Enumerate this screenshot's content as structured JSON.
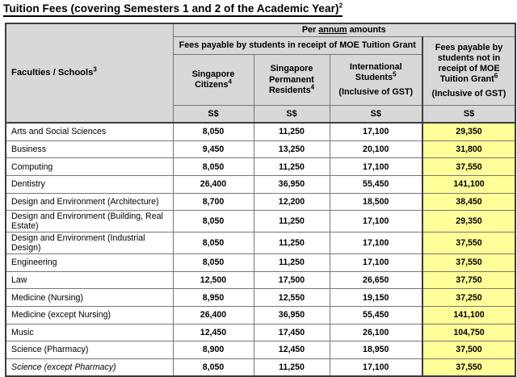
{
  "title": {
    "text": "Tuition Fees (covering Semesters 1 and 2 of the Academic Year)",
    "sup": "2"
  },
  "colors": {
    "header_bg": "#d8d8d8",
    "highlight_bg": "#ffff99",
    "border": "#3c3c3c"
  },
  "table": {
    "faculties": {
      "label": "Faculties / Schools",
      "sup": "3"
    },
    "per_annum": {
      "prefix": "Per ",
      "underlined": "annum",
      "suffix": " amounts"
    },
    "grant_header": "Fees payable by students in receipt of MOE Tuition Grant",
    "columns": [
      {
        "label": "Singapore Citizens",
        "sup": "4"
      },
      {
        "label": "Singapore Permanent Residents",
        "sup": "4"
      },
      {
        "label": "International Students",
        "sup": "5",
        "gst": "(Inclusive of GST)"
      }
    ],
    "non_grant": {
      "label": "Fees payable by students not in receipt of MOE Tuition Grant",
      "sup": "6",
      "gst": "(Inclusive of GST)"
    },
    "currency": "S$",
    "rows": [
      {
        "faculty": "Arts and Social Sciences",
        "citizens": "8,050",
        "pr": "11,250",
        "intl": "17,100",
        "non_grant": "29,350"
      },
      {
        "faculty": "Business",
        "citizens": "9,450",
        "pr": "13,250",
        "intl": "20,100",
        "non_grant": "31,800"
      },
      {
        "faculty": "Computing",
        "citizens": "8,050",
        "pr": "11,250",
        "intl": "17,100",
        "non_grant": "37,550"
      },
      {
        "faculty": "Dentistry",
        "citizens": "26,400",
        "pr": "36,950",
        "intl": "55,450",
        "non_grant": "141,100"
      },
      {
        "faculty": "Design and Environment (Architecture)",
        "citizens": "8,700",
        "pr": "12,200",
        "intl": "18,500",
        "non_grant": "38,450"
      },
      {
        "faculty": "Design and Environment (Building, Real Estate)",
        "citizens": "8,050",
        "pr": "11,250",
        "intl": "17,100",
        "non_grant": "29,350"
      },
      {
        "faculty": "Design and Environment (Industrial Design)",
        "citizens": "8,050",
        "pr": "11,250",
        "intl": "17,100",
        "non_grant": "37,550"
      },
      {
        "faculty": "Engineering",
        "citizens": "8,050",
        "pr": "11,250",
        "intl": "17,100",
        "non_grant": "37,550"
      },
      {
        "faculty": "Law",
        "citizens": "12,500",
        "pr": "17,500",
        "intl": "26,650",
        "non_grant": "37,750"
      },
      {
        "faculty": "Medicine (Nursing)",
        "citizens": "8,950",
        "pr": "12,550",
        "intl": "19,150",
        "non_grant": "37,250"
      },
      {
        "faculty": "Medicine (except Nursing)",
        "citizens": "26,400",
        "pr": "36,950",
        "intl": "55,450",
        "non_grant": "141,100"
      },
      {
        "faculty": "Music",
        "citizens": "12,450",
        "pr": "17,450",
        "intl": "26,100",
        "non_grant": "104,750"
      },
      {
        "faculty": "Science (Pharmacy)",
        "citizens": "8,900",
        "pr": "12,450",
        "intl": "18,950",
        "non_grant": "37,500"
      },
      {
        "faculty": "Science (except Pharmacy)",
        "citizens": "8,050",
        "pr": "11,250",
        "intl": "17,100",
        "non_grant": "37,550",
        "italic": true
      }
    ]
  }
}
